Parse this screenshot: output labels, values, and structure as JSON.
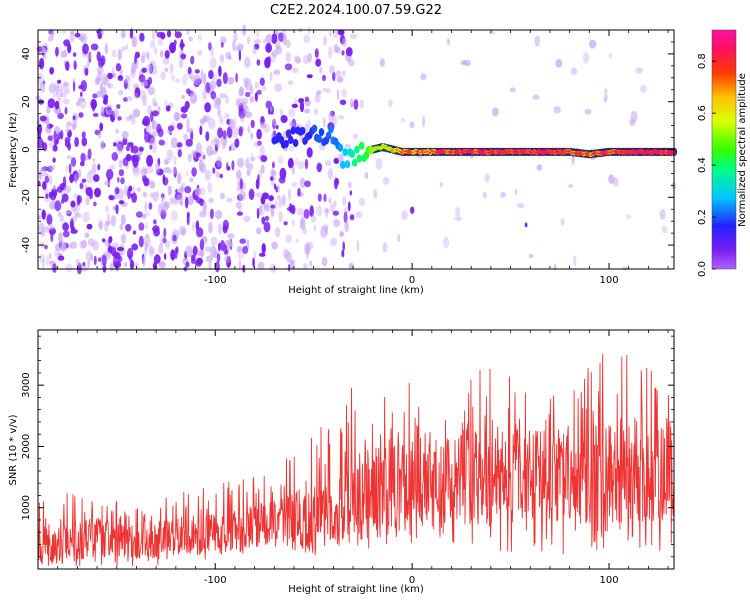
{
  "title": "C2E2.2024.100.07.59.G22",
  "colors": {
    "snr_line": "#ee3333",
    "spectrum_noise": "#7a1ff0",
    "spectrum_noise_faint": "#c9a6f5",
    "signal_peak": "#e8212a"
  },
  "chart_data": [
    {
      "type": "heatmap",
      "xlabel": "Height of straight line (km)",
      "ylabel": "Frequency (Hz)",
      "xlim": [
        -190,
        133
      ],
      "ylim": [
        -50,
        50
      ],
      "xticks": [
        -100,
        0,
        100
      ],
      "yticks": [
        -40,
        -20,
        0,
        20,
        40
      ],
      "grid": false,
      "colorbar": {
        "label": "Normalized spectral amplitude",
        "range": [
          0.0,
          0.92
        ],
        "ticks": [
          "0.0",
          "0.2",
          "0.4",
          "0.6",
          "0.8"
        ],
        "colormap": "rainbow (purple → blue → cyan → green → yellow → orange → red → magenta)"
      },
      "signal_track": {
        "x": [
          -70,
          -60,
          -50,
          -45,
          -40,
          -35,
          -30,
          -25,
          -20,
          -15,
          -10,
          -5,
          0,
          10,
          20,
          40,
          60,
          80,
          90,
          100,
          133
        ],
        "y": [
          4,
          5,
          6,
          5,
          6,
          -4,
          -3,
          -1,
          0,
          1,
          0,
          -1,
          -1,
          -1,
          -1,
          -1,
          -1,
          -1,
          -2,
          -1,
          -1
        ],
        "amplitude": [
          0.15,
          0.15,
          0.18,
          0.2,
          0.22,
          0.3,
          0.35,
          0.4,
          0.5,
          0.55,
          0.6,
          0.65,
          0.7,
          0.75,
          0.78,
          0.8,
          0.82,
          0.8,
          0.7,
          0.8,
          0.85
        ]
      },
      "noise_region_x": [
        -190,
        -30
      ],
      "noise_amplitude": 0.08
    },
    {
      "type": "line",
      "xlabel": "Height of straight line (km)",
      "ylabel": "SNR (10 * v/v)",
      "xlim": [
        -190,
        133
      ],
      "ylim": [
        0,
        3900
      ],
      "xticks": [
        -100,
        0,
        100
      ],
      "yticks": [
        1000,
        2000,
        3000
      ],
      "grid": false,
      "series_envelope": {
        "x": [
          -190,
          -160,
          -130,
          -125,
          -100,
          -70,
          -50,
          -40,
          -30,
          -20,
          -10,
          0,
          20,
          40,
          60,
          80,
          100,
          120,
          133
        ],
        "mean": [
          380,
          520,
          380,
          520,
          570,
          750,
          830,
          950,
          1150,
          1250,
          1350,
          1400,
          1480,
          1530,
          1520,
          1530,
          1520,
          1580,
          1720
        ],
        "max": [
          1300,
          1220,
          900,
          1200,
          1450,
          1700,
          2250,
          2550,
          3200,
          3050,
          3250,
          3000,
          3150,
          3300,
          3100,
          2950,
          3850,
          3300,
          3500
        ],
        "min": [
          0,
          0,
          50,
          100,
          150,
          300,
          200,
          350,
          300,
          300,
          350,
          300,
          400,
          300,
          250,
          200,
          300,
          250,
          300
        ]
      }
    }
  ]
}
